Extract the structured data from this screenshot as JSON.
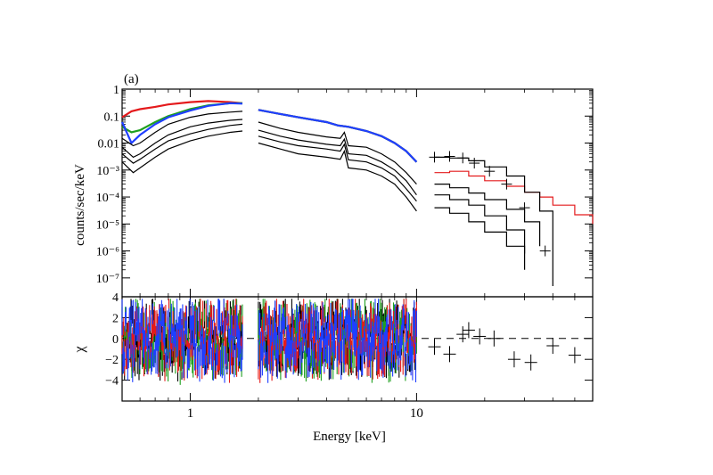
{
  "panel_label": "(a)",
  "chart_data": [
    {
      "type": "line",
      "panel": "top",
      "ylabel": "counts/sec/keV",
      "xlabel": "",
      "xscale": "log",
      "yscale": "log",
      "xlim": [
        0.5,
        60
      ],
      "ylim": [
        2e-08,
        1
      ],
      "ytick_labels": [
        "1",
        "0.1",
        "0.01",
        "10⁻³",
        "10⁻⁴",
        "10⁻⁵",
        "10⁻⁶",
        "10⁻⁷"
      ],
      "ytick_values": [
        1,
        0.1,
        0.01,
        0.001,
        0.0001,
        1e-05,
        1e-06,
        1e-07
      ],
      "colors": {
        "red": "#e41a1c",
        "green": "#1fa01f",
        "blue": "#1f3fff",
        "black": "#000000"
      },
      "series": [
        {
          "color": "red",
          "x": [
            0.5,
            0.55,
            0.6,
            0.7,
            0.8,
            1.0,
            1.2,
            1.5,
            1.7,
            2.0,
            2.5,
            3.0,
            4.0,
            4.5,
            5.0,
            6.0,
            7.0,
            8.0,
            9.0,
            10.0
          ],
          "y": [
            0.09,
            0.15,
            0.18,
            0.22,
            0.27,
            0.33,
            0.36,
            0.33,
            0.3,
            0.17,
            0.12,
            0.09,
            0.06,
            0.045,
            0.04,
            0.028,
            0.018,
            0.01,
            0.005,
            0.002
          ]
        },
        {
          "color": "green",
          "x": [
            0.5,
            0.55,
            0.6,
            0.7,
            0.8,
            1.0,
            1.2,
            1.5,
            1.7,
            2.0,
            2.5,
            3.0,
            4.0,
            4.5,
            5.0,
            6.0,
            7.0,
            8.0,
            9.0,
            10.0
          ],
          "y": [
            0.04,
            0.025,
            0.03,
            0.06,
            0.1,
            0.18,
            0.25,
            0.3,
            0.3,
            0.17,
            0.12,
            0.09,
            0.06,
            0.045,
            0.04,
            0.028,
            0.018,
            0.01,
            0.005,
            0.002
          ]
        },
        {
          "color": "blue",
          "x": [
            0.5,
            0.55,
            0.6,
            0.7,
            0.8,
            1.0,
            1.2,
            1.5,
            1.7,
            2.0,
            2.5,
            3.0,
            4.0,
            4.5,
            5.0,
            6.0,
            7.0,
            8.0,
            9.0,
            10.0
          ],
          "y": [
            0.06,
            0.01,
            0.02,
            0.05,
            0.09,
            0.16,
            0.24,
            0.3,
            0.29,
            0.17,
            0.12,
            0.09,
            0.06,
            0.045,
            0.04,
            0.028,
            0.018,
            0.01,
            0.005,
            0.002
          ]
        },
        {
          "color": "black",
          "x": [
            0.5,
            0.56,
            0.6,
            0.7,
            0.8,
            1.0,
            1.2,
            1.5,
            1.7,
            2.0,
            2.5,
            3.0,
            4.0,
            4.6,
            4.8,
            5.0,
            6.0,
            7.0,
            8.0,
            9.0,
            10.0
          ],
          "y": [
            0.002,
            0.0008,
            0.0012,
            0.003,
            0.006,
            0.012,
            0.018,
            0.025,
            0.028,
            0.01,
            0.006,
            0.004,
            0.003,
            0.0025,
            0.005,
            0.0012,
            0.001,
            0.0006,
            0.0003,
            0.0001,
            3e-05
          ]
        },
        {
          "color": "black",
          "x": [
            0.5,
            0.56,
            0.6,
            0.7,
            0.8,
            1.0,
            1.2,
            1.5,
            1.7,
            2.0,
            2.5,
            3.0,
            4.0,
            4.6,
            4.8,
            5.0,
            6.0,
            7.0,
            8.0,
            9.0,
            10.0
          ],
          "y": [
            0.004,
            0.0018,
            0.0025,
            0.006,
            0.012,
            0.022,
            0.032,
            0.045,
            0.05,
            0.018,
            0.011,
            0.008,
            0.006,
            0.005,
            0.009,
            0.0024,
            0.002,
            0.0012,
            0.0006,
            0.0002,
            7e-05
          ]
        },
        {
          "color": "black",
          "x": [
            0.5,
            0.56,
            0.6,
            0.7,
            0.8,
            1.0,
            1.2,
            1.5,
            1.7,
            2.0,
            2.5,
            3.0,
            4.0,
            4.6,
            4.8,
            5.0,
            6.0,
            7.0,
            8.0,
            9.0,
            10.0
          ],
          "y": [
            0.007,
            0.003,
            0.004,
            0.01,
            0.02,
            0.04,
            0.055,
            0.07,
            0.075,
            0.03,
            0.018,
            0.013,
            0.009,
            0.008,
            0.014,
            0.004,
            0.0035,
            0.002,
            0.001,
            0.0004,
            0.00012
          ]
        },
        {
          "color": "black",
          "x": [
            0.5,
            0.56,
            0.6,
            0.7,
            0.8,
            1.0,
            1.2,
            1.5,
            1.7,
            2.0,
            2.5,
            3.0,
            4.0,
            4.6,
            4.8,
            5.0,
            6.0,
            7.0,
            8.0,
            9.0,
            10.0
          ],
          "y": [
            0.015,
            0.008,
            0.01,
            0.025,
            0.05,
            0.09,
            0.12,
            0.14,
            0.15,
            0.06,
            0.035,
            0.025,
            0.017,
            0.015,
            0.025,
            0.008,
            0.007,
            0.004,
            0.002,
            0.0008,
            0.0003
          ]
        },
        {
          "color": "red",
          "x": [
            12,
            14,
            17,
            20,
            25,
            30,
            35,
            40,
            50,
            60
          ],
          "y": [
            0.0008,
            0.0009,
            0.0006,
            0.0004,
            0.00025,
            0.00015,
            0.0001,
            5e-05,
            2.2e-05,
            1e-05
          ]
        },
        {
          "color": "black",
          "x": [
            12,
            14,
            17,
            20,
            25,
            30,
            35,
            40
          ],
          "y": [
            0.003,
            0.0028,
            0.0022,
            0.0013,
            0.0006,
            0.00015,
            3e-05,
            5e-08
          ]
        },
        {
          "color": "black",
          "x": [
            12,
            14,
            17,
            20,
            25,
            30,
            35
          ],
          "y": [
            0.0003,
            0.00022,
            0.00014,
            8e-05,
            3.5e-05,
            1.2e-05,
            1.5e-06
          ]
        },
        {
          "color": "black",
          "x": [
            12,
            14,
            17,
            20,
            25,
            30
          ],
          "y": [
            0.00012,
            8e-05,
            5e-05,
            2e-05,
            6e-06,
            8e-07
          ]
        },
        {
          "color": "black",
          "x": [
            12,
            14,
            17,
            20,
            25,
            30
          ],
          "y": [
            4e-05,
            2.5e-05,
            1.2e-05,
            5e-06,
            1.5e-06,
            2e-07
          ]
        }
      ],
      "points": {
        "x": [
          12,
          14,
          16,
          18,
          21,
          25,
          30,
          37
        ],
        "y": [
          0.003,
          0.0032,
          0.0028,
          0.0018,
          0.0009,
          0.0003,
          4e-05,
          1e-06
        ]
      }
    },
    {
      "type": "scatter",
      "panel": "bottom",
      "ylabel": "χ",
      "xlabel": "Energy [keV]",
      "xscale": "log",
      "xlim": [
        0.5,
        60
      ],
      "ylim": [
        -6,
        4
      ],
      "ytick_labels": [
        "4",
        "2",
        "0",
        "−2",
        "−4"
      ],
      "ytick_values": [
        4,
        2,
        0,
        -2,
        -4
      ],
      "xtick_labels": [
        "1",
        "10"
      ],
      "xtick_values": [
        1,
        10
      ],
      "zero_line": "dashed",
      "residual_points": {
        "x": [
          12,
          14,
          16,
          17,
          19,
          22,
          27,
          32,
          40,
          50
        ],
        "y": [
          -0.8,
          -1.5,
          0.4,
          0.8,
          0.2,
          0.0,
          -2.0,
          -2.3,
          -0.7,
          -1.6
        ]
      }
    }
  ]
}
